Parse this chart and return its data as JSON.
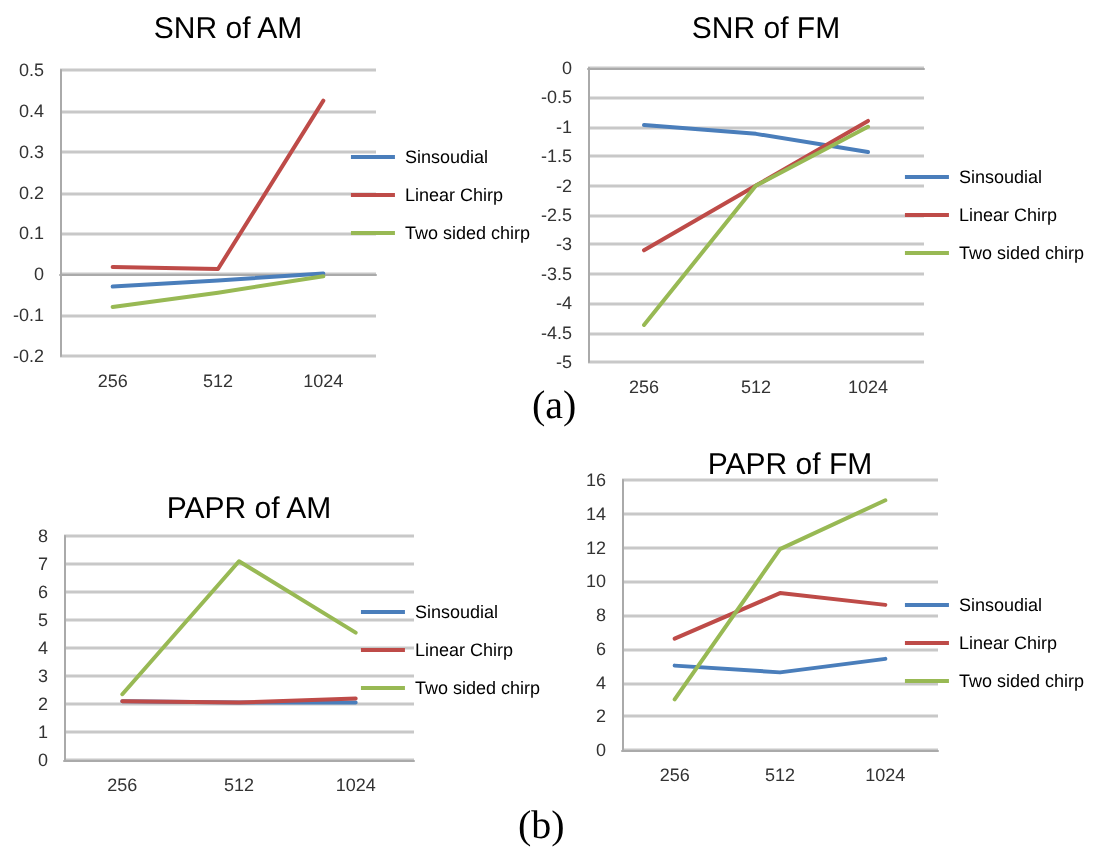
{
  "chart_data": [
    {
      "type": "line",
      "title": "SNR of AM",
      "categories": [
        "256",
        "512",
        "1024"
      ],
      "series": [
        {
          "name": "Sinsoudial",
          "color": "#4a7ebb",
          "values": [
            -0.03,
            -0.015,
            0.002
          ]
        },
        {
          "name": "Linear Chirp",
          "color": "#be4b48",
          "values": [
            0.018,
            0.013,
            0.425
          ]
        },
        {
          "name": "Two sided chirp",
          "color": "#98b954",
          "values": [
            -0.08,
            -0.045,
            -0.005
          ]
        }
      ],
      "ylim": [
        -0.2,
        0.5
      ],
      "yticks": [
        -0.2,
        -0.1,
        0,
        0.1,
        0.2,
        0.3,
        0.4,
        0.5
      ],
      "grid": "y",
      "legend": "right",
      "marker": "none",
      "line_style": "solid"
    },
    {
      "type": "line",
      "title": "SNR of FM",
      "categories": [
        "256",
        "512",
        "1024"
      ],
      "series": [
        {
          "name": "Sinsoudial",
          "color": "#4a7ebb",
          "values": [
            -0.97,
            -1.12,
            -1.43
          ]
        },
        {
          "name": "Linear Chirp",
          "color": "#be4b48",
          "values": [
            -3.1,
            -2.0,
            -0.9
          ]
        },
        {
          "name": "Two sided chirp",
          "color": "#98b954",
          "values": [
            -4.37,
            -2.0,
            -1.0
          ]
        }
      ],
      "ylim": [
        -5,
        0
      ],
      "yticks": [
        -5,
        -4.5,
        -4,
        -3.5,
        -3,
        -2.5,
        -2,
        -1.5,
        -1,
        -0.5,
        0
      ],
      "grid": "y",
      "legend": "right",
      "marker": "none",
      "line_style": "solid",
      "annotations": [
        "(a)"
      ]
    },
    {
      "type": "line",
      "title": "PAPR of AM",
      "categories": [
        "256",
        "512",
        "1024"
      ],
      "series": [
        {
          "name": "Sinsoudial",
          "color": "#4a7ebb",
          "values": [
            2.1,
            2.05,
            2.05
          ]
        },
        {
          "name": "Linear Chirp",
          "color": "#be4b48",
          "values": [
            2.1,
            2.05,
            2.2
          ]
        },
        {
          "name": "Two sided chirp",
          "color": "#98b954",
          "values": [
            2.35,
            7.1,
            4.55
          ]
        }
      ],
      "ylim": [
        0,
        8
      ],
      "yticks": [
        0,
        1,
        2,
        3,
        4,
        5,
        6,
        7,
        8
      ],
      "grid": "y",
      "legend": "right",
      "marker": "none",
      "line_style": "solid"
    },
    {
      "type": "line",
      "title": "PAPR of FM",
      "categories": [
        "256",
        "512",
        "1024"
      ],
      "series": [
        {
          "name": "Sinsoudial",
          "color": "#4a7ebb",
          "values": [
            5.0,
            4.6,
            5.4
          ]
        },
        {
          "name": "Linear Chirp",
          "color": "#be4b48",
          "values": [
            6.6,
            9.3,
            8.6
          ]
        },
        {
          "name": "Two sided chirp",
          "color": "#98b954",
          "values": [
            3.0,
            11.9,
            14.8
          ]
        }
      ],
      "ylim": [
        0,
        16
      ],
      "yticks": [
        0,
        2,
        4,
        6,
        8,
        10,
        12,
        14,
        16
      ],
      "grid": "y",
      "legend": "right",
      "marker": "none",
      "line_style": "solid",
      "annotations": [
        "(b)"
      ]
    }
  ]
}
